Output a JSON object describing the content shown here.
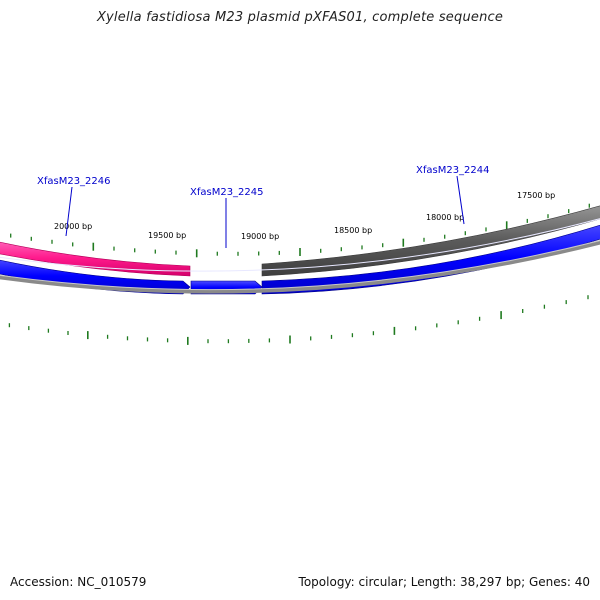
{
  "title": "Xylella fastidiosa M23 plasmid pXFAS01, complete sequence",
  "scale_labels": [
    "20000 bp",
    "19500 bp",
    "19000 bp",
    "18500 bp",
    "18000 bp",
    "17500 bp"
  ],
  "genes": [
    {
      "label": "XfasM23_2246"
    },
    {
      "label": "XfasM23_2245"
    },
    {
      "label": "XfasM23_2244"
    }
  ],
  "colors": {
    "forward_gene": "#ff3399",
    "reverse_gene": "#0000ff",
    "other_gene": "#6e6e6e",
    "backbone": "#7a7a7a",
    "gene_label": "#0000cc",
    "ticks": "#1f7a1f"
  },
  "footer": {
    "accession": "Accession: NC_010579",
    "summary": "Topology: circular; Length: 38,297 bp; Genes: 40"
  }
}
